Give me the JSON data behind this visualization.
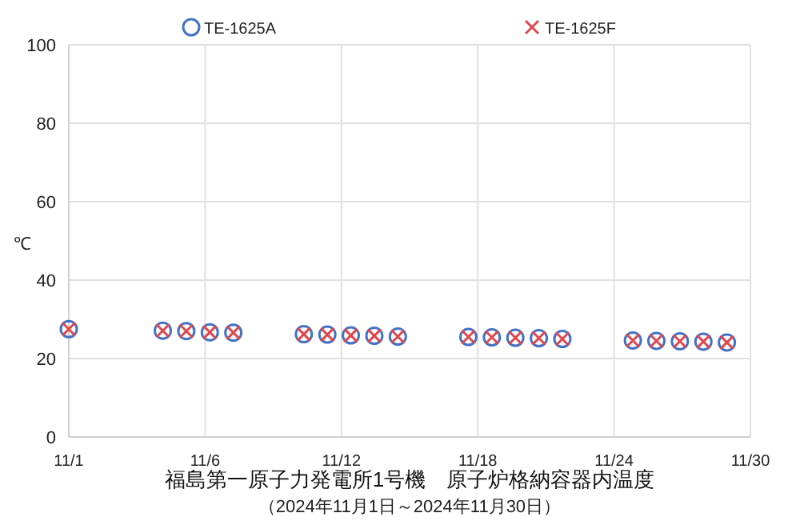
{
  "chart_data": {
    "type": "scatter",
    "title": "福島第一原子力発電所1号機　原子炉格納容器内温度",
    "subtitle": "（2024年11月1日～2024年11月30日）",
    "ylabel": "℃",
    "x": [
      "2024-11-01",
      "2024-11-05",
      "2024-11-06",
      "2024-11-07",
      "2024-11-08",
      "2024-11-11",
      "2024-11-12",
      "2024-11-13",
      "2024-11-14",
      "2024-11-15",
      "2024-11-18",
      "2024-11-19",
      "2024-11-20",
      "2024-11-21",
      "2024-11-22",
      "2024-11-25",
      "2024-11-26",
      "2024-11-27",
      "2024-11-28",
      "2024-11-29"
    ],
    "series": [
      {
        "name": "TE-1625A",
        "color": "#4472c4",
        "marker": "circle",
        "values": [
          27.5,
          27.1,
          27.0,
          26.7,
          26.6,
          26.2,
          26.1,
          25.9,
          25.8,
          25.6,
          25.5,
          25.4,
          25.3,
          25.2,
          25.0,
          24.6,
          24.5,
          24.4,
          24.3,
          24.1
        ]
      },
      {
        "name": "TE-1625F",
        "color": "#e0474c",
        "marker": "cross",
        "values": [
          27.5,
          27.1,
          27.0,
          26.7,
          26.6,
          26.2,
          26.1,
          25.9,
          25.8,
          25.6,
          25.5,
          25.4,
          25.3,
          25.2,
          25.0,
          24.6,
          24.5,
          24.4,
          24.3,
          24.1
        ]
      }
    ],
    "xlim": [
      "2024-11-01",
      "2024-11-30"
    ],
    "xticks": [
      {
        "value": "2024-11-01",
        "label": "11/1"
      },
      {
        "value": "2024-11-06T19:12",
        "label": "11/6"
      },
      {
        "value": "2024-11-12T14:24",
        "label": "11/12"
      },
      {
        "value": "2024-11-18T09:36",
        "label": "11/18"
      },
      {
        "value": "2024-11-24T04:48",
        "label": "11/24"
      },
      {
        "value": "2024-11-30",
        "label": "11/30"
      }
    ],
    "ylim": [
      0,
      100
    ],
    "yticks": [
      0,
      20,
      40,
      60,
      80,
      100
    ],
    "grid": true,
    "legend": "top"
  }
}
